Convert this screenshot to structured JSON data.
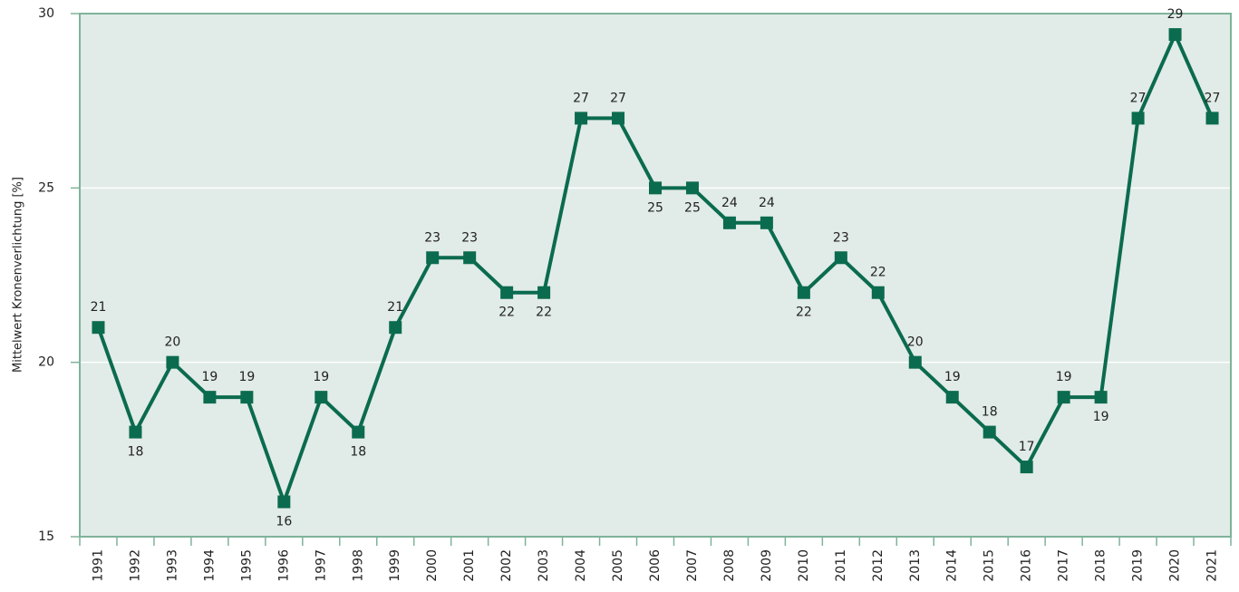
{
  "chart_data": {
    "type": "line",
    "y_label": "Mittelwert Kronenverlichtung [%]",
    "categories": [
      "1991",
      "1992",
      "1993",
      "1994",
      "1995",
      "1996",
      "1997",
      "1998",
      "1999",
      "2000",
      "2001",
      "2002",
      "2003",
      "2004",
      "2005",
      "2006",
      "2007",
      "2008",
      "2009",
      "2010",
      "2011",
      "2012",
      "2013",
      "2014",
      "2015",
      "2016",
      "2017",
      "2018",
      "2019",
      "2020",
      "2021"
    ],
    "values": [
      21,
      18,
      20,
      19,
      19,
      16,
      19,
      18,
      21,
      23,
      23,
      22,
      22,
      27,
      27,
      25,
      25,
      24,
      24,
      22,
      23,
      22,
      20,
      19,
      18,
      17,
      19,
      19,
      27,
      29.4,
      27
    ],
    "value_labels": [
      "21",
      "18",
      "20",
      "19",
      "19",
      "16",
      "19",
      "18",
      "21",
      "23",
      "23",
      "22",
      "22",
      "27",
      "27",
      "25",
      "25",
      "24",
      "24",
      "22",
      "23",
      "22",
      "20",
      "19",
      "18",
      "17",
      "19",
      "19",
      "27",
      "29",
      "27"
    ],
    "color": "#0b6b4e",
    "ylim": [
      15,
      30
    ],
    "yticks": [
      15,
      20,
      25,
      30
    ],
    "grid": true
  }
}
